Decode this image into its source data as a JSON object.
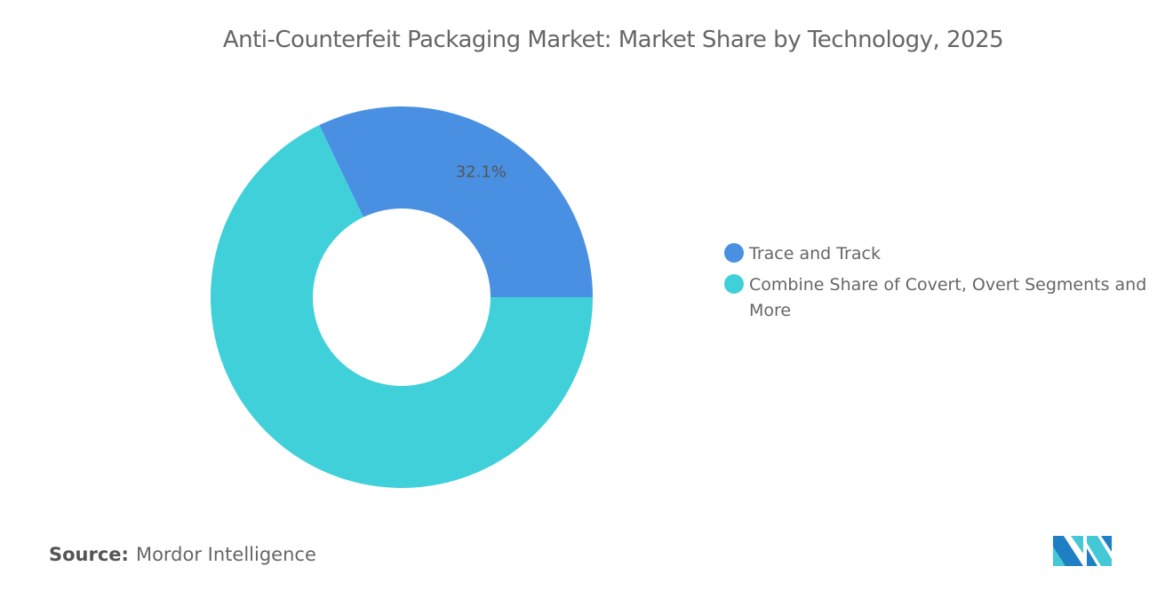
{
  "chart_data": {
    "type": "pie",
    "title": "Anti-Counterfeit Packaging Market: Market Share by Technology, 2025",
    "donut": true,
    "categories": [
      "Trace and Track",
      "Combine Share of Covert, Overt Segments and More"
    ],
    "values": [
      32.1,
      67.9
    ],
    "data_labels": [
      "32.1%",
      ""
    ],
    "colors": [
      "#4A90E2",
      "#40D0DA"
    ],
    "legend_position": "right"
  },
  "source": {
    "label": "Source:",
    "value": "Mordor Intelligence"
  },
  "logo": {
    "text": "Mordor Intelligence",
    "colors": [
      "#1f7fc4",
      "#45c8d6"
    ]
  }
}
